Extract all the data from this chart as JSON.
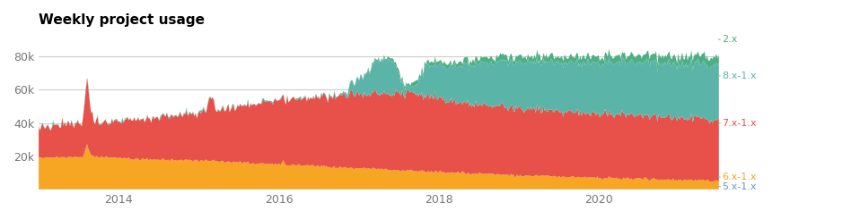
{
  "title": "Weekly project usage",
  "title_fontsize": 11,
  "title_fontweight": "bold",
  "legend_colors": [
    "#4caf85",
    "#5ab5a8",
    "#e8504a",
    "#f6a623",
    "#5b9bd5"
  ],
  "ylabel_ticks": [
    "20k",
    "40k",
    "60k",
    "80k"
  ],
  "ytick_values": [
    20000,
    40000,
    60000,
    80000
  ],
  "x_tick_labels": [
    "2014",
    "2016",
    "2018",
    "2020"
  ],
  "xlim_end": 520,
  "ylim": [
    0,
    95000
  ],
  "background_color": "#ffffff",
  "grid_color": "#cccccc",
  "n_points": 521,
  "start_year": 2013.0,
  "end_year": 2021.5
}
